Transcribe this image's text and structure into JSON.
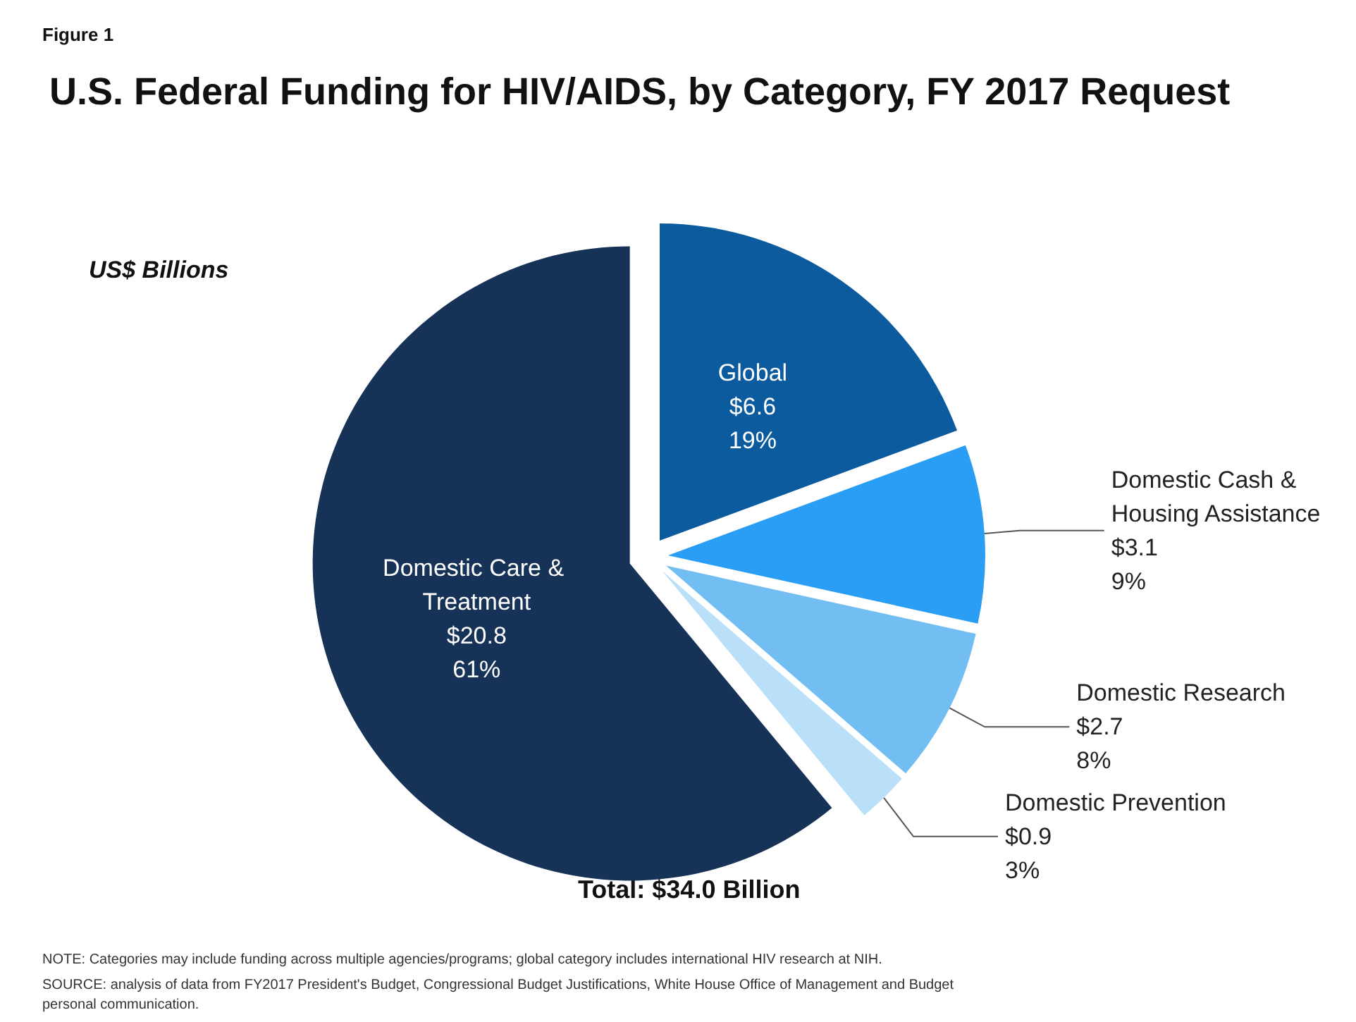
{
  "chart_data": {
    "type": "pie",
    "title": "U.S. Federal Funding for HIV/AIDS, by Category, FY 2017 Request",
    "subtitle": "US$ Billions",
    "categories": [
      "Global",
      "Domestic Cash & Housing Assistance",
      "Domestic Research",
      "Domestic Prevention",
      "Domestic Care & Treatment"
    ],
    "values": [
      6.6,
      3.1,
      2.7,
      0.9,
      20.8
    ],
    "value_labels": [
      "$6.6\n19%",
      "$3.1\n9%",
      "$2.7\n8%",
      "$0.9\n3%",
      "$20.8\n61%"
    ],
    "colors": [
      "#0b5b9e",
      "#2a9df4",
      "#72bdf2",
      "#b9dff9",
      "#173257"
    ],
    "legend": false,
    "annotations": [
      "Figure 1",
      "Total: $34.0 Billion",
      "NOTE: Categories may include funding across multiple agencies/programs; global category includes international HIV research at NIH.",
      "SOURCE: analysis of data from FY2017 President's Budget, Congressional Budget Justifications, White House Office of Management and Budget personal communication."
    ]
  }
}
